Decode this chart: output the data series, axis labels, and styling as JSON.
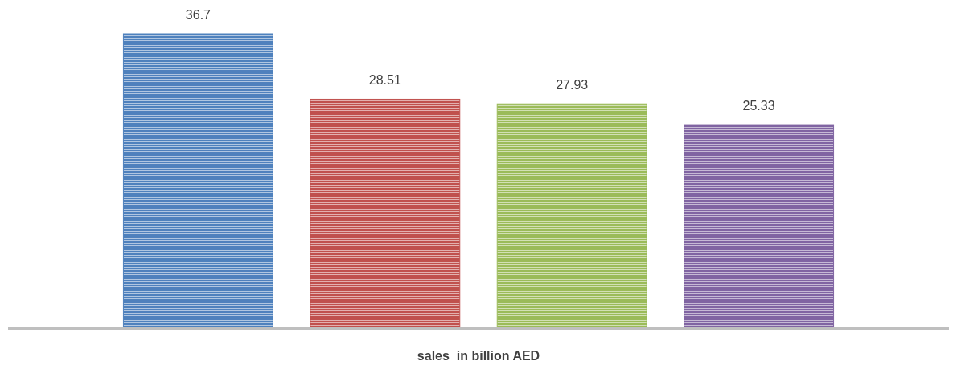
{
  "chart_data": {
    "type": "bar",
    "xlabel": "sales  in billion AED",
    "categories": [
      null,
      null,
      null,
      null
    ],
    "values": [
      36.7,
      28.51,
      27.93,
      25.33
    ],
    "colors": [
      "#4f81bd",
      "#c0504d",
      "#9bbb59",
      "#8064a2"
    ],
    "data_labels": true
  }
}
